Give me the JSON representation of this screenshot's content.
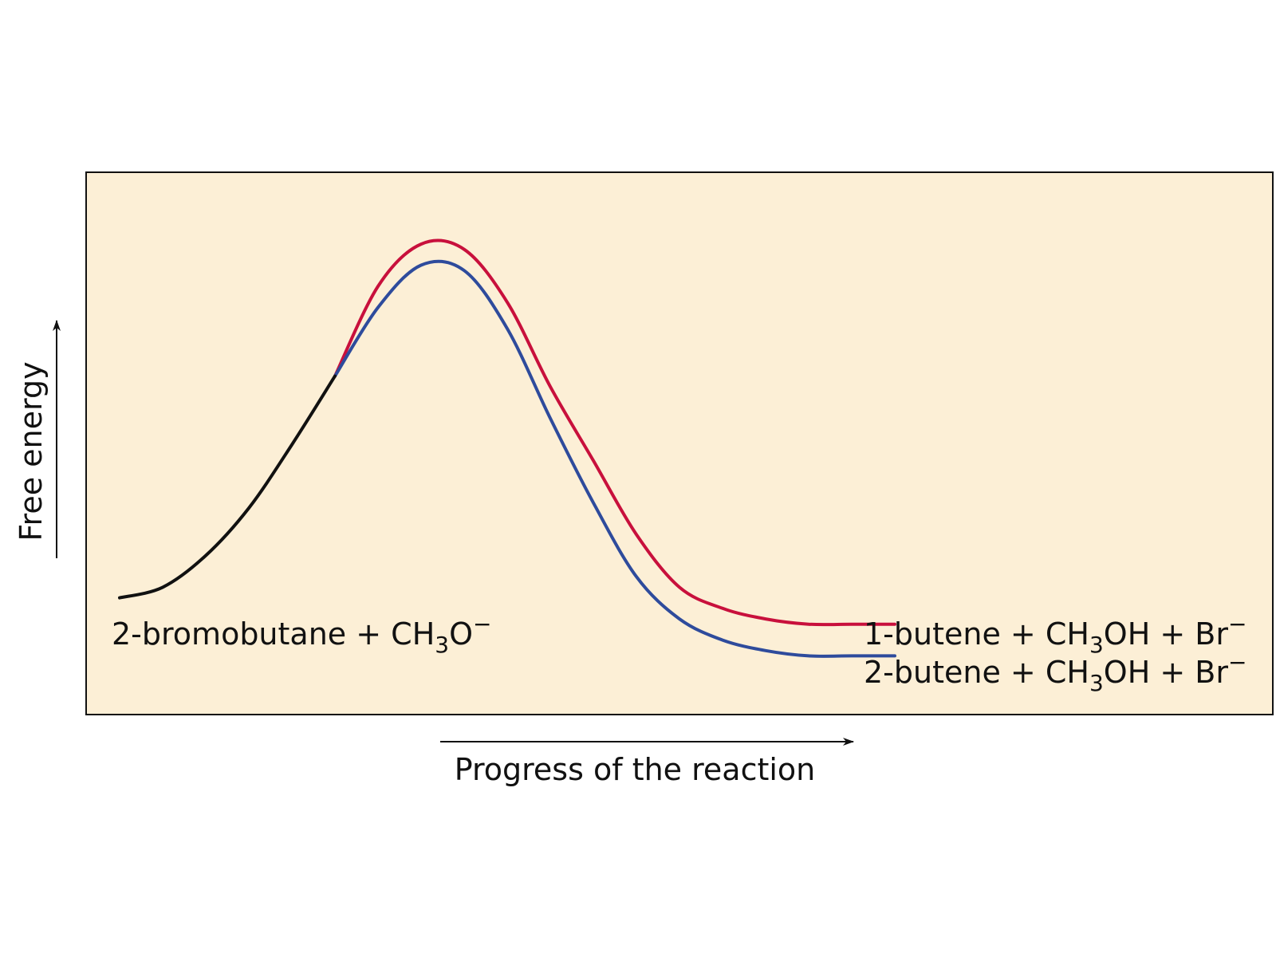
{
  "chart_data": {
    "type": "line",
    "title": "",
    "xlabel": "Progress of the reaction",
    "ylabel": "Free energy",
    "xlim": [
      0,
      1
    ],
    "ylim": [
      0,
      1
    ],
    "grid": false,
    "legend": "none",
    "background_color": "#fcefd6",
    "common_path": {
      "color": "#111111",
      "x": [
        0.0,
        0.05,
        0.1,
        0.15,
        0.2,
        0.25
      ],
      "y": [
        0.2,
        0.22,
        0.28,
        0.37,
        0.49,
        0.62
      ]
    },
    "series": [
      {
        "color": "#c8103c",
        "x": [
          0.25,
          0.3,
          0.35,
          0.4,
          0.45,
          0.5,
          0.55,
          0.6,
          0.65,
          0.7,
          0.75,
          0.8,
          0.85,
          0.9
        ],
        "y": [
          0.62,
          0.79,
          0.87,
          0.86,
          0.76,
          0.6,
          0.46,
          0.32,
          0.22,
          0.18,
          0.16,
          0.15,
          0.15,
          0.15
        ]
      },
      {
        "color": "#2e4b9c",
        "x": [
          0.25,
          0.3,
          0.35,
          0.4,
          0.45,
          0.5,
          0.55,
          0.6,
          0.65,
          0.7,
          0.75,
          0.8,
          0.85,
          0.9
        ],
        "y": [
          0.62,
          0.75,
          0.83,
          0.82,
          0.71,
          0.54,
          0.38,
          0.24,
          0.16,
          0.12,
          0.1,
          0.09,
          0.09,
          0.09
        ]
      }
    ],
    "annotations": [
      {
        "id": "reactants",
        "parts": [
          "2-bromobutane + CH",
          "3",
          "O",
          "−"
        ]
      },
      {
        "id": "product-1",
        "parts": [
          "1-butene + CH",
          "3",
          "OH + Br",
          "−"
        ]
      },
      {
        "id": "product-2",
        "parts": [
          "2-butene + CH",
          "3",
          "OH + Br",
          "−"
        ]
      }
    ]
  }
}
